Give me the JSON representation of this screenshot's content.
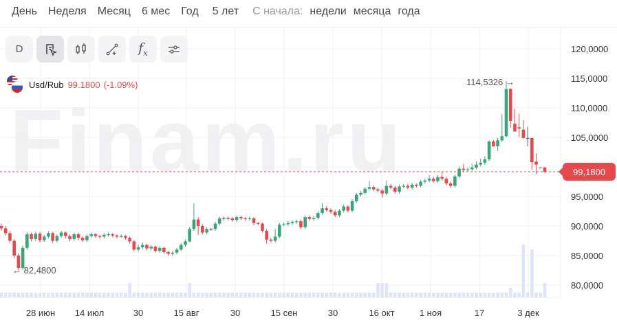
{
  "periods": [
    "День",
    "Неделя",
    "Месяц",
    "6 мес",
    "Год",
    "5 лет"
  ],
  "since_label": "С начала:",
  "since_options": [
    "недели",
    "месяца",
    "года"
  ],
  "toolbar": {
    "interval_label": "D",
    "buttons": [
      "drawing-mode",
      "candles",
      "line-tool",
      "indicators",
      "settings"
    ]
  },
  "watermark": "Finam.ru",
  "instrument": {
    "symbol": "Usd/Rub",
    "price": "99.1800",
    "change": "(-1.09%)"
  },
  "colors": {
    "up": "#3fa37a",
    "down": "#e5484d",
    "grid": "#f0f0f2",
    "volume": "#dfe4fb"
  },
  "chart_data": {
    "type": "candlestick",
    "ylim": [
      78,
      122
    ],
    "y_ticks": [
      "120,0000",
      "115,0000",
      "110,0000",
      "105,0000",
      "100,0000",
      "95,0000",
      "90,0000",
      "85,0000",
      "80,0000"
    ],
    "y_tick_values": [
      120,
      115,
      110,
      105,
      100,
      95,
      90,
      85,
      80
    ],
    "x_ticks": [
      "28 июн",
      "14 июл",
      "30",
      "15 авг",
      "30",
      "15 сен",
      "30",
      "16 окт",
      "1 ноя",
      "17",
      "3 дек"
    ],
    "current_price": 99.18,
    "current_price_label": "99,1800",
    "max_label": "114,5326",
    "min_label": "82,4800",
    "grid": true,
    "ohlc": [
      [
        90.0,
        90.4,
        89.2,
        89.6
      ],
      [
        89.6,
        90.0,
        88.4,
        88.8
      ],
      [
        88.8,
        89.1,
        87.1,
        87.5
      ],
      [
        87.5,
        87.8,
        84.6,
        85.0
      ],
      [
        85.0,
        85.4,
        82.48,
        82.9
      ],
      [
        82.9,
        86.7,
        82.6,
        86.3
      ],
      [
        86.3,
        89.0,
        86.0,
        88.6
      ],
      [
        88.6,
        88.9,
        87.4,
        87.8
      ],
      [
        87.8,
        89.0,
        87.5,
        88.7
      ],
      [
        88.7,
        89.0,
        87.2,
        87.6
      ],
      [
        87.6,
        88.5,
        87.3,
        88.2
      ],
      [
        88.2,
        89.1,
        87.9,
        88.8
      ],
      [
        88.8,
        89.0,
        87.1,
        87.5
      ],
      [
        87.5,
        88.6,
        87.2,
        88.3
      ],
      [
        88.3,
        89.2,
        88.0,
        88.9
      ],
      [
        88.9,
        89.1,
        87.9,
        88.3
      ],
      [
        88.3,
        88.6,
        87.4,
        87.8
      ],
      [
        87.8,
        88.9,
        87.5,
        88.6
      ],
      [
        88.6,
        88.9,
        87.6,
        88.0
      ],
      [
        88.0,
        88.3,
        87.3,
        87.6
      ],
      [
        87.6,
        88.6,
        87.3,
        88.3
      ],
      [
        88.3,
        88.9,
        88.0,
        88.6
      ],
      [
        88.6,
        88.8,
        88.0,
        88.3
      ],
      [
        88.3,
        88.5,
        87.9,
        88.2
      ],
      [
        88.2,
        88.8,
        87.9,
        88.5
      ],
      [
        88.5,
        88.9,
        88.2,
        88.6
      ],
      [
        88.6,
        88.8,
        88.1,
        88.4
      ],
      [
        88.4,
        88.6,
        87.9,
        88.2
      ],
      [
        88.2,
        88.6,
        88.0,
        88.3
      ],
      [
        88.3,
        88.5,
        87.7,
        88.0
      ],
      [
        88.0,
        88.2,
        87.0,
        87.4
      ],
      [
        87.4,
        87.6,
        85.7,
        86.0
      ],
      [
        86.0,
        86.8,
        85.7,
        86.4
      ],
      [
        86.4,
        87.2,
        86.1,
        86.8
      ],
      [
        86.8,
        87.0,
        85.9,
        86.2
      ],
      [
        86.2,
        86.8,
        85.9,
        86.5
      ],
      [
        86.5,
        86.7,
        85.5,
        85.8
      ],
      [
        85.8,
        86.6,
        85.5,
        86.3
      ],
      [
        86.3,
        86.5,
        85.3,
        85.6
      ],
      [
        85.6,
        85.8,
        85.0,
        85.3
      ],
      [
        85.3,
        85.8,
        85.0,
        85.5
      ],
      [
        85.5,
        86.3,
        85.2,
        86.0
      ],
      [
        86.0,
        87.1,
        85.8,
        86.8
      ],
      [
        86.8,
        87.7,
        86.5,
        87.4
      ],
      [
        87.4,
        89.8,
        87.2,
        89.5
      ],
      [
        89.5,
        93.8,
        89.2,
        91.1
      ],
      [
        91.1,
        91.5,
        88.5,
        90.0
      ],
      [
        90.0,
        90.3,
        88.6,
        88.9
      ],
      [
        88.9,
        89.8,
        88.6,
        89.5
      ],
      [
        89.5,
        89.7,
        89.2,
        89.5
      ],
      [
        89.5,
        90.7,
        89.2,
        90.4
      ],
      [
        90.4,
        91.6,
        90.1,
        91.3
      ],
      [
        91.3,
        91.6,
        90.9,
        91.3
      ],
      [
        91.3,
        91.6,
        91.0,
        91.3
      ],
      [
        91.3,
        91.5,
        90.7,
        91.0
      ],
      [
        91.0,
        91.8,
        90.7,
        91.5
      ],
      [
        91.5,
        91.7,
        91.0,
        91.3
      ],
      [
        91.3,
        91.5,
        90.9,
        91.2
      ],
      [
        91.2,
        91.6,
        90.9,
        91.3
      ],
      [
        91.3,
        91.5,
        90.2,
        90.5
      ],
      [
        90.5,
        90.7,
        90.1,
        90.4
      ],
      [
        90.4,
        90.6,
        88.9,
        89.2
      ],
      [
        89.2,
        89.5,
        87.0,
        87.7
      ],
      [
        87.7,
        88.0,
        87.2,
        87.5
      ],
      [
        87.5,
        89.5,
        87.2,
        88.2
      ],
      [
        88.2,
        90.5,
        87.9,
        90.2
      ],
      [
        90.2,
        90.6,
        90.0,
        90.3
      ],
      [
        90.3,
        90.8,
        90.0,
        90.5
      ],
      [
        90.5,
        91.0,
        90.2,
        90.7
      ],
      [
        90.7,
        91.1,
        90.4,
        90.8
      ],
      [
        90.8,
        91.1,
        89.5,
        89.8
      ],
      [
        89.8,
        91.8,
        89.5,
        91.5
      ],
      [
        91.5,
        91.8,
        90.9,
        91.2
      ],
      [
        91.2,
        91.7,
        90.9,
        91.4
      ],
      [
        91.4,
        92.5,
        91.1,
        92.2
      ],
      [
        92.2,
        93.9,
        91.9,
        93.0
      ],
      [
        93.0,
        93.3,
        92.4,
        92.7
      ],
      [
        92.7,
        93.0,
        92.1,
        92.4
      ],
      [
        92.4,
        92.7,
        91.5,
        91.8
      ],
      [
        91.8,
        92.9,
        91.5,
        92.6
      ],
      [
        92.6,
        93.6,
        92.3,
        93.3
      ],
      [
        93.3,
        93.5,
        92.3,
        92.6
      ],
      [
        92.6,
        94.5,
        92.3,
        94.2
      ],
      [
        94.2,
        95.6,
        93.9,
        95.3
      ],
      [
        95.3,
        95.9,
        95.0,
        95.6
      ],
      [
        95.6,
        96.6,
        95.3,
        96.3
      ],
      [
        96.3,
        97.6,
        96.0,
        96.6
      ],
      [
        96.6,
        96.9,
        95.9,
        96.2
      ],
      [
        96.2,
        96.5,
        95.7,
        96.0
      ],
      [
        96.0,
        96.3,
        94.8,
        95.5
      ],
      [
        95.5,
        97.7,
        95.2,
        96.8
      ],
      [
        96.8,
        97.1,
        96.2,
        96.5
      ],
      [
        96.5,
        96.8,
        95.5,
        95.8
      ],
      [
        95.8,
        97.0,
        95.5,
        96.7
      ],
      [
        96.7,
        97.1,
        96.4,
        96.8
      ],
      [
        96.8,
        97.1,
        96.2,
        96.5
      ],
      [
        96.5,
        97.3,
        96.2,
        97.0
      ],
      [
        97.0,
        97.2,
        96.5,
        96.8
      ],
      [
        96.8,
        97.8,
        96.5,
        97.5
      ],
      [
        97.5,
        98.0,
        97.2,
        97.7
      ],
      [
        97.7,
        98.6,
        97.4,
        98.0
      ],
      [
        98.0,
        98.3,
        97.3,
        97.6
      ],
      [
        97.6,
        98.6,
        97.3,
        98.3
      ],
      [
        98.3,
        99.2,
        97.7,
        98.0
      ],
      [
        98.0,
        98.3,
        96.9,
        97.2
      ],
      [
        97.2,
        97.5,
        96.5,
        96.8
      ],
      [
        96.8,
        98.7,
        96.5,
        98.4
      ],
      [
        98.4,
        100.0,
        98.1,
        99.7
      ],
      [
        99.7,
        100.5,
        99.2,
        99.5
      ],
      [
        99.5,
        99.9,
        99.2,
        99.6
      ],
      [
        99.6,
        100.5,
        99.3,
        99.9
      ],
      [
        99.9,
        100.9,
        99.6,
        100.4
      ],
      [
        100.4,
        101.4,
        100.1,
        100.7
      ],
      [
        100.7,
        101.8,
        100.4,
        101.3
      ],
      [
        101.3,
        104.5,
        101.0,
        104.3
      ],
      [
        104.3,
        104.6,
        103.4,
        103.5
      ],
      [
        103.5,
        104.9,
        102.7,
        104.5
      ],
      [
        104.5,
        108.9,
        104.2,
        105.2
      ],
      [
        105.2,
        114.5326,
        105.0,
        113.2
      ],
      [
        113.2,
        113.3,
        106.6,
        107.8
      ],
      [
        107.3,
        109.8,
        106.0,
        106.0
      ],
      [
        106.7,
        109.0,
        105.1,
        106.5
      ],
      [
        106.3,
        107.9,
        104.8,
        104.9
      ],
      [
        104.9,
        106.8,
        103.5,
        104.9
      ],
      [
        104.9,
        104.9,
        99.5,
        100.8
      ],
      [
        100.9,
        102.3,
        98.8,
        100.4
      ],
      [
        99.9,
        99.9,
        99.9,
        99.9
      ],
      [
        99.9,
        100.0,
        99.0,
        99.18
      ]
    ],
    "volume": {
      "default": 1,
      "spikes": {
        "30": 3,
        "44": 3,
        "88": 3,
        "89": 3,
        "90": 3,
        "119": 2,
        "122": 11,
        "124": 10,
        "127": 3
      }
    }
  }
}
